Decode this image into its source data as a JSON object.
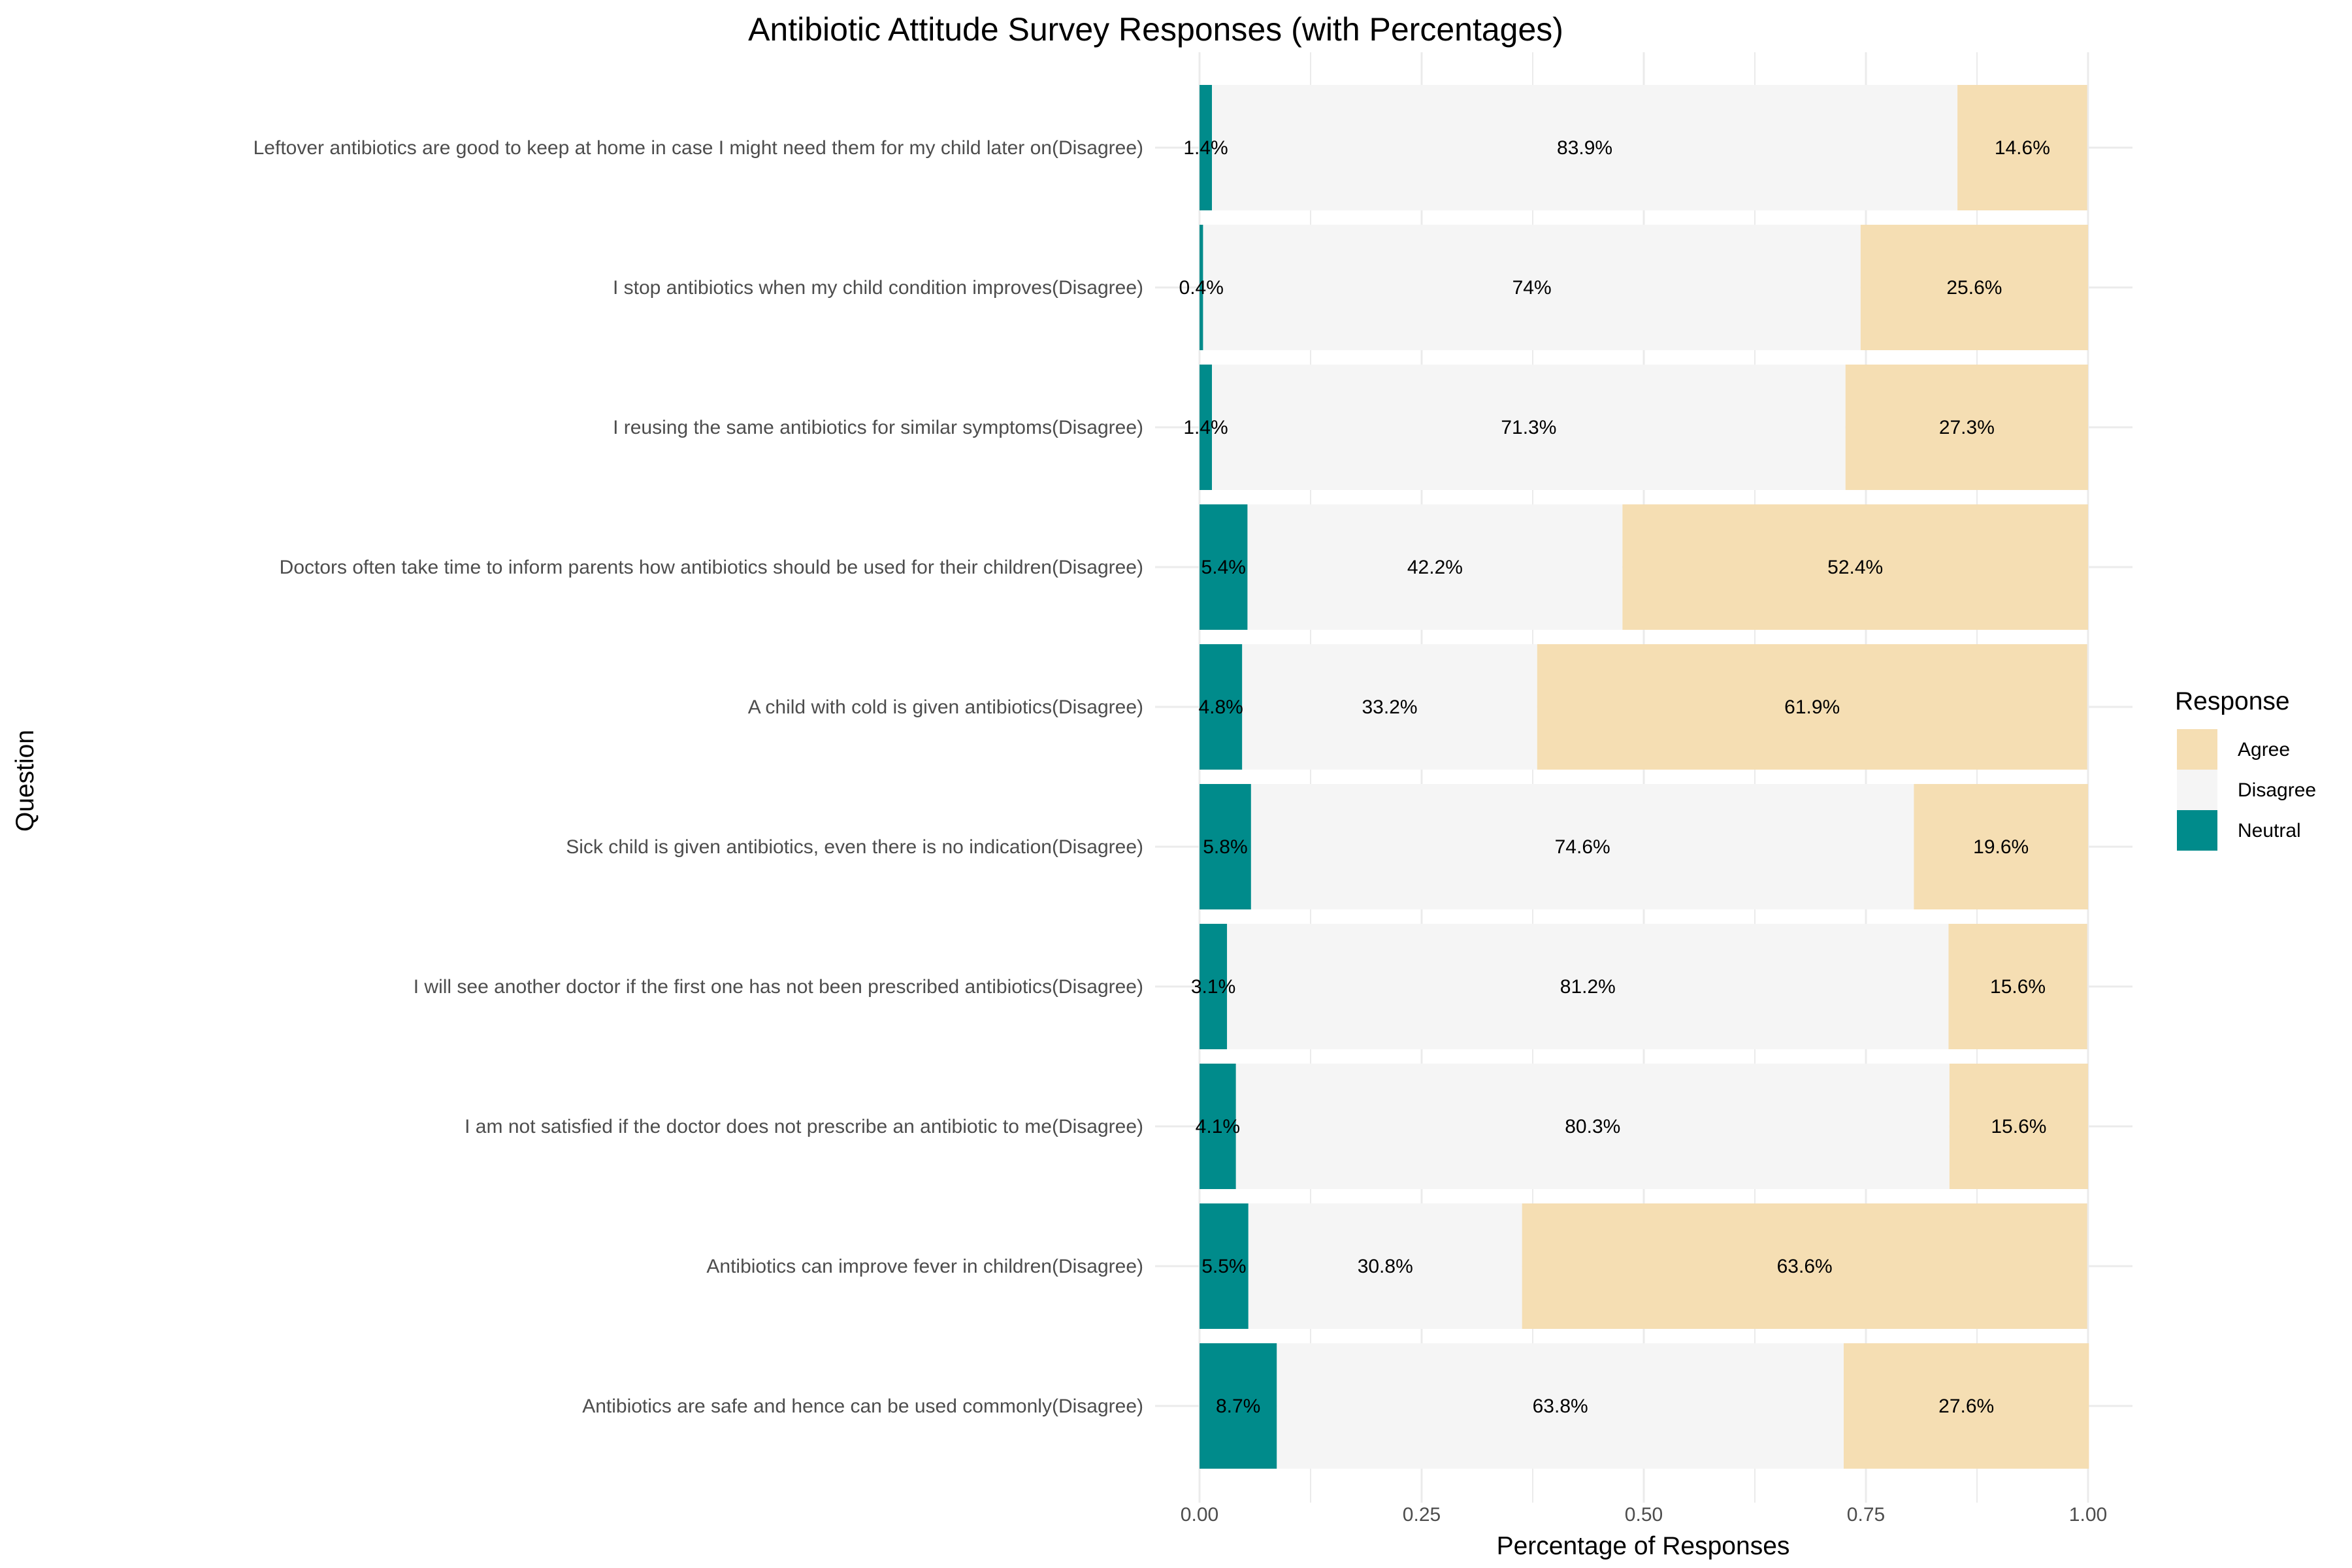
{
  "chart_data": {
    "type": "bar",
    "orientation": "horizontal",
    "stacked": true,
    "title": "Antibiotic Attitude Survey Responses (with Percentages)",
    "xlabel": "Percentage of Responses",
    "ylabel": "Question",
    "xlim": [
      0,
      1
    ],
    "x_ticks": [
      "0.00",
      "0.25",
      "0.50",
      "0.75",
      "1.00"
    ],
    "grid": true,
    "legend": {
      "title": "Response",
      "position": "right",
      "entries": [
        "Agree",
        "Disagree",
        "Neutral"
      ]
    },
    "colors": {
      "Neutral": "#008b8b",
      "Disagree": "#f5f5f5",
      "Agree": "#f5deb3"
    },
    "stack_order": [
      "Neutral",
      "Disagree",
      "Agree"
    ],
    "categories": [
      "Leftover antibiotics are good to keep at home in case I might need them for my child later on(Disagree)",
      "I stop antibiotics when my child condition improves(Disagree)",
      "I reusing the same antibiotics for similar symptoms(Disagree)",
      "Doctors often take time to inform parents how antibiotics should be used for their children(Disagree)",
      "A child with cold is given antibiotics(Disagree)",
      "Sick child is given antibiotics, even there is no indication(Disagree)",
      "I will see another doctor if the first one has not been prescribed antibiotics(Disagree)",
      "I am not satisfied if the doctor does not prescribe an antibiotic to me(Disagree)",
      "Antibiotics can improve fever in children(Disagree)",
      "Antibiotics are safe and hence can be used commonly(Disagree)"
    ],
    "series": [
      {
        "name": "Neutral",
        "values": [
          0.014,
          0.004,
          0.014,
          0.054,
          0.048,
          0.058,
          0.031,
          0.041,
          0.055,
          0.087
        ],
        "labels": [
          "1.4%",
          "0.4%",
          "1.4%",
          "5.4%",
          "4.8%",
          "5.8%",
          "3.1%",
          "4.1%",
          "5.5%",
          "8.7%"
        ]
      },
      {
        "name": "Disagree",
        "values": [
          0.839,
          0.74,
          0.713,
          0.422,
          0.332,
          0.746,
          0.812,
          0.803,
          0.308,
          0.638
        ],
        "labels": [
          "83.9%",
          "74%",
          "71.3%",
          "42.2%",
          "33.2%",
          "74.6%",
          "81.2%",
          "80.3%",
          "30.8%",
          "63.8%"
        ]
      },
      {
        "name": "Agree",
        "values": [
          0.146,
          0.256,
          0.273,
          0.524,
          0.619,
          0.196,
          0.156,
          0.156,
          0.636,
          0.276
        ],
        "labels": [
          "14.6%",
          "25.6%",
          "27.3%",
          "52.4%",
          "61.9%",
          "19.6%",
          "15.6%",
          "15.6%",
          "63.6%",
          "27.6%"
        ]
      }
    ]
  }
}
